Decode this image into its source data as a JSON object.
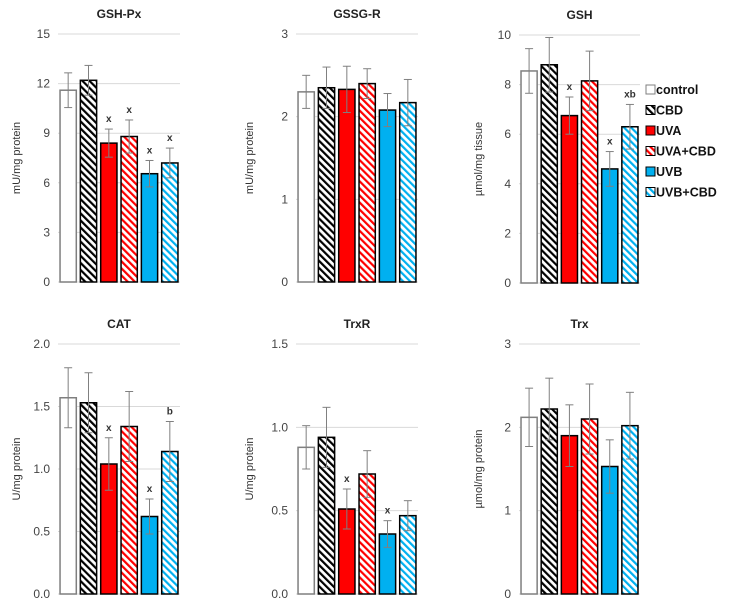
{
  "colors": {
    "control": "#ffffff",
    "CBD": "#000000",
    "UVA": "#ff0000",
    "UVB": "#00b0f0",
    "grid": "#d9d9d9",
    "error_bar": "#808080"
  },
  "legend": {
    "placement": "right",
    "items": [
      {
        "label": "control",
        "fill": "solid",
        "color": "#ffffff"
      },
      {
        "label": "CBD",
        "fill": "hatched",
        "color": "#000000"
      },
      {
        "label": "UVA",
        "fill": "solid",
        "color": "#ff0000"
      },
      {
        "label": "UVA+CBD",
        "fill": "hatched",
        "color": "#ff0000"
      },
      {
        "label": "UVB",
        "fill": "solid",
        "color": "#00b0f0"
      },
      {
        "label": "UVB+CBD",
        "fill": "hatched",
        "color": "#00b0f0"
      }
    ]
  },
  "chart_data": [
    {
      "type": "bar",
      "title": "GSH-Px",
      "ylabel": "mU/mg protein",
      "ylim": [
        0,
        15
      ],
      "yticks": [
        "0",
        "3",
        "6",
        "9",
        "12",
        "15"
      ],
      "grid": true,
      "categories": [
        "control",
        "CBD",
        "UVA",
        "UVA+CBD",
        "UVB",
        "UVB+CBD"
      ],
      "values": [
        11.6,
        12.2,
        8.4,
        8.8,
        6.55,
        7.2
      ],
      "errors": [
        1.05,
        0.9,
        0.85,
        1.0,
        0.8,
        0.9
      ],
      "annotations": [
        "",
        "",
        "x",
        "x",
        "x",
        "x"
      ]
    },
    {
      "type": "bar",
      "title": "GSSG-R",
      "ylabel": "mU/mg protein",
      "ylim": [
        0,
        3
      ],
      "yticks": [
        "0",
        "1",
        "2",
        "3"
      ],
      "grid": true,
      "categories": [
        "control",
        "CBD",
        "UVA",
        "UVA+CBD",
        "UVB",
        "UVB+CBD"
      ],
      "values": [
        2.3,
        2.35,
        2.33,
        2.4,
        2.08,
        2.17
      ],
      "errors": [
        0.2,
        0.25,
        0.28,
        0.18,
        0.2,
        0.28
      ],
      "annotations": [
        "",
        "",
        "",
        "",
        "",
        ""
      ]
    },
    {
      "type": "bar",
      "title": "GSH",
      "ylabel": "µmol/mg  tissue",
      "ylim": [
        0,
        10
      ],
      "yticks": [
        "0",
        "2",
        "4",
        "6",
        "8",
        "10"
      ],
      "grid": true,
      "categories": [
        "control",
        "CBD",
        "UVA",
        "UVA+CBD",
        "UVB",
        "UVB+CBD"
      ],
      "values": [
        8.55,
        8.8,
        6.75,
        8.15,
        4.6,
        6.3
      ],
      "errors": [
        0.9,
        1.1,
        0.75,
        1.2,
        0.7,
        0.9
      ],
      "annotations": [
        "",
        "",
        "x",
        "",
        "x",
        "xb"
      ]
    },
    {
      "type": "bar",
      "title": "CAT",
      "ylabel": "U/mg protein",
      "ylim": [
        0,
        2
      ],
      "yticks": [
        "0.0",
        "0.5",
        "1.0",
        "1.5",
        "2.0"
      ],
      "grid": true,
      "categories": [
        "control",
        "CBD",
        "UVA",
        "UVA+CBD",
        "UVB",
        "UVB+CBD"
      ],
      "values": [
        1.57,
        1.53,
        1.04,
        1.34,
        0.62,
        1.14
      ],
      "errors": [
        0.24,
        0.24,
        0.21,
        0.28,
        0.14,
        0.24
      ],
      "annotations": [
        "",
        "",
        "x",
        "",
        "x",
        "b"
      ]
    },
    {
      "type": "bar",
      "title": "TrxR",
      "ylabel": "U/mg protein",
      "ylim": [
        0,
        1.5
      ],
      "yticks": [
        "0.0",
        "0.5",
        "1.0",
        "1.5"
      ],
      "grid": true,
      "categories": [
        "control",
        "CBD",
        "UVA",
        "UVA+CBD",
        "UVB",
        "UVB+CBD"
      ],
      "values": [
        0.88,
        0.94,
        0.51,
        0.72,
        0.36,
        0.47
      ],
      "errors": [
        0.13,
        0.18,
        0.12,
        0.14,
        0.08,
        0.09
      ],
      "annotations": [
        "",
        "",
        "x",
        "",
        "x",
        ""
      ]
    },
    {
      "type": "bar",
      "title": "Trx",
      "ylabel": "µmol/mg  protein",
      "ylim": [
        0,
        3
      ],
      "yticks": [
        "0",
        "1",
        "2",
        "3"
      ],
      "grid": true,
      "categories": [
        "control",
        "CBD",
        "UVA",
        "UVA+CBD",
        "UVB",
        "UVB+CBD"
      ],
      "values": [
        2.12,
        2.22,
        1.9,
        2.1,
        1.53,
        2.02
      ],
      "errors": [
        0.35,
        0.37,
        0.37,
        0.42,
        0.32,
        0.4
      ],
      "annotations": [
        "",
        "",
        "",
        "",
        "",
        ""
      ]
    }
  ]
}
